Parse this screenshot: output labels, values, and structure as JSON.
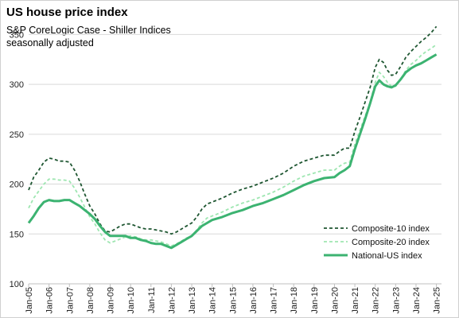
{
  "chart_data": {
    "type": "line",
    "title": "US house price index",
    "subtitle_lines": [
      "S&P CoreLogic Case - Shiller Indices",
      "seasonally adjusted"
    ],
    "xlabel": "",
    "ylabel": "",
    "ylim": [
      100,
      375
    ],
    "yticks": [
      100,
      150,
      200,
      250,
      300,
      350
    ],
    "x_range": [
      2005.0,
      2025.25
    ],
    "xtick_labels": [
      "Jan-05",
      "Jan-06",
      "Jan-07",
      "Jan-08",
      "Jan-09",
      "Jan-10",
      "Jan-11",
      "Jan-12",
      "Jan-13",
      "Jan-14",
      "Jan-15",
      "Jan-16",
      "Jan-17",
      "Jan-18",
      "Jan-19",
      "Jan-20",
      "Jan-21",
      "Jan-22",
      "Jan-23",
      "Jan-24",
      "Jan-25"
    ],
    "grid": "horizontal",
    "legend_position": "bottom-right",
    "series": [
      {
        "name": "Composite-10 index",
        "color": "#1e5631",
        "style": "dashed",
        "x": [
          2005.0,
          2005.25,
          2005.5,
          2005.75,
          2006.0,
          2006.25,
          2006.5,
          2006.75,
          2007.0,
          2007.25,
          2007.5,
          2007.75,
          2008.0,
          2008.25,
          2008.5,
          2008.75,
          2009.0,
          2009.25,
          2009.5,
          2009.75,
          2010.0,
          2010.25,
          2010.5,
          2010.75,
          2011.0,
          2011.25,
          2011.5,
          2011.75,
          2012.0,
          2012.25,
          2012.5,
          2012.75,
          2013.0,
          2013.25,
          2013.5,
          2013.75,
          2014.0,
          2014.5,
          2015.0,
          2015.5,
          2016.0,
          2016.5,
          2017.0,
          2017.5,
          2018.0,
          2018.5,
          2019.0,
          2019.5,
          2020.0,
          2020.25,
          2020.5,
          2020.75,
          2021.0,
          2021.25,
          2021.5,
          2021.75,
          2022.0,
          2022.2,
          2022.4,
          2022.6,
          2022.8,
          2023.0,
          2023.25,
          2023.5,
          2023.75,
          2024.0,
          2024.25,
          2024.5,
          2024.75,
          2025.0
        ],
        "values": [
          194,
          207,
          214,
          222,
          226,
          225,
          223,
          223,
          222,
          214,
          203,
          190,
          178,
          170,
          160,
          153,
          152,
          155,
          158,
          160,
          160,
          158,
          156,
          155,
          155,
          154,
          153,
          152,
          150,
          152,
          155,
          158,
          161,
          167,
          175,
          180,
          182,
          186,
          191,
          195,
          198,
          202,
          206,
          211,
          218,
          223,
          226,
          229,
          229,
          233,
          236,
          236,
          253,
          267,
          282,
          297,
          317,
          325,
          322,
          314,
          309,
          310,
          318,
          327,
          333,
          338,
          343,
          347,
          352,
          358
        ]
      },
      {
        "name": "Composite-20 index",
        "color": "#9ee6b1",
        "style": "dashed",
        "x": [
          2005.0,
          2005.25,
          2005.5,
          2005.75,
          2006.0,
          2006.25,
          2006.5,
          2006.75,
          2007.0,
          2007.25,
          2007.5,
          2007.75,
          2008.0,
          2008.25,
          2008.5,
          2008.75,
          2009.0,
          2009.25,
          2009.5,
          2009.75,
          2010.0,
          2010.25,
          2010.5,
          2010.75,
          2011.0,
          2011.25,
          2011.5,
          2011.75,
          2012.0,
          2012.25,
          2012.5,
          2012.75,
          2013.0,
          2013.25,
          2013.5,
          2013.75,
          2014.0,
          2014.5,
          2015.0,
          2015.5,
          2016.0,
          2016.5,
          2017.0,
          2017.5,
          2018.0,
          2018.5,
          2019.0,
          2019.5,
          2020.0,
          2020.25,
          2020.5,
          2020.75,
          2021.0,
          2021.25,
          2021.5,
          2021.75,
          2022.0,
          2022.2,
          2022.4,
          2022.6,
          2022.8,
          2023.0,
          2023.25,
          2023.5,
          2023.75,
          2024.0,
          2024.25,
          2024.5,
          2024.75,
          2025.0
        ],
        "values": [
          176,
          186,
          193,
          200,
          205,
          205,
          204,
          204,
          203,
          196,
          187,
          177,
          167,
          160,
          151,
          144,
          141,
          143,
          145,
          147,
          148,
          147,
          145,
          144,
          144,
          143,
          142,
          140,
          138,
          140,
          143,
          146,
          148,
          154,
          161,
          166,
          168,
          172,
          177,
          181,
          184,
          188,
          192,
          197,
          203,
          208,
          211,
          214,
          214,
          218,
          221,
          222,
          240,
          254,
          268,
          282,
          302,
          312,
          308,
          302,
          298,
          298,
          305,
          314,
          320,
          324,
          329,
          333,
          336,
          340
        ]
      },
      {
        "name": "National-US index",
        "color": "#3cb371",
        "style": "solid",
        "x": [
          2005.0,
          2005.25,
          2005.5,
          2005.75,
          2006.0,
          2006.25,
          2006.5,
          2006.75,
          2007.0,
          2007.25,
          2007.5,
          2007.75,
          2008.0,
          2008.25,
          2008.5,
          2008.75,
          2009.0,
          2009.25,
          2009.5,
          2009.75,
          2010.0,
          2010.25,
          2010.5,
          2010.75,
          2011.0,
          2011.25,
          2011.5,
          2011.75,
          2012.0,
          2012.25,
          2012.5,
          2012.75,
          2013.0,
          2013.25,
          2013.5,
          2013.75,
          2014.0,
          2014.5,
          2015.0,
          2015.5,
          2016.0,
          2016.5,
          2017.0,
          2017.5,
          2018.0,
          2018.5,
          2019.0,
          2019.5,
          2020.0,
          2020.25,
          2020.5,
          2020.75,
          2021.0,
          2021.25,
          2021.5,
          2021.75,
          2022.0,
          2022.2,
          2022.4,
          2022.6,
          2022.8,
          2023.0,
          2023.25,
          2023.5,
          2023.75,
          2024.0,
          2024.25,
          2024.5,
          2024.75,
          2025.0
        ],
        "values": [
          161,
          168,
          176,
          182,
          184,
          183,
          183,
          184,
          184,
          181,
          178,
          174,
          170,
          165,
          158,
          152,
          148,
          148,
          148,
          148,
          146,
          146,
          144,
          143,
          141,
          140,
          140,
          138,
          136,
          139,
          142,
          145,
          148,
          153,
          158,
          161,
          164,
          167,
          171,
          174,
          178,
          181,
          185,
          189,
          194,
          199,
          203,
          206,
          207,
          211,
          214,
          218,
          235,
          250,
          265,
          281,
          298,
          304,
          300,
          298,
          297,
          299,
          305,
          312,
          316,
          319,
          321,
          324,
          327,
          330
        ]
      }
    ]
  }
}
